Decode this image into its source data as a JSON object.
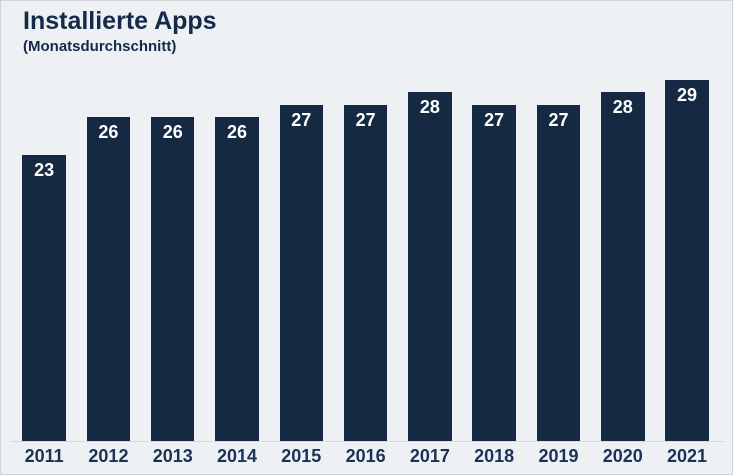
{
  "page": {
    "background_color": "#edf1f4",
    "border_color": "#d2d5d8"
  },
  "header": {
    "title": "Installierte Apps",
    "subtitle": "(Monatsdurchschnitt)",
    "title_color": "#15294a"
  },
  "chart_data": {
    "type": "bar",
    "title": "Installierte Apps",
    "subtitle": "(Monatsdurchschnitt)",
    "categories": [
      "2011",
      "2012",
      "2013",
      "2014",
      "2015",
      "2016",
      "2017",
      "2018",
      "2019",
      "2020",
      "2021"
    ],
    "values": [
      23,
      26,
      26,
      26,
      27,
      27,
      28,
      27,
      27,
      28,
      29
    ],
    "xlabel": "",
    "ylabel": "",
    "ylim": [
      0,
      29
    ],
    "grid": false,
    "legend_position": "none",
    "bar_color": "#152a42",
    "value_label_color": "#ffffff",
    "tick_label_color": "#1b3156",
    "axis_line_color": "#d8dadd"
  }
}
